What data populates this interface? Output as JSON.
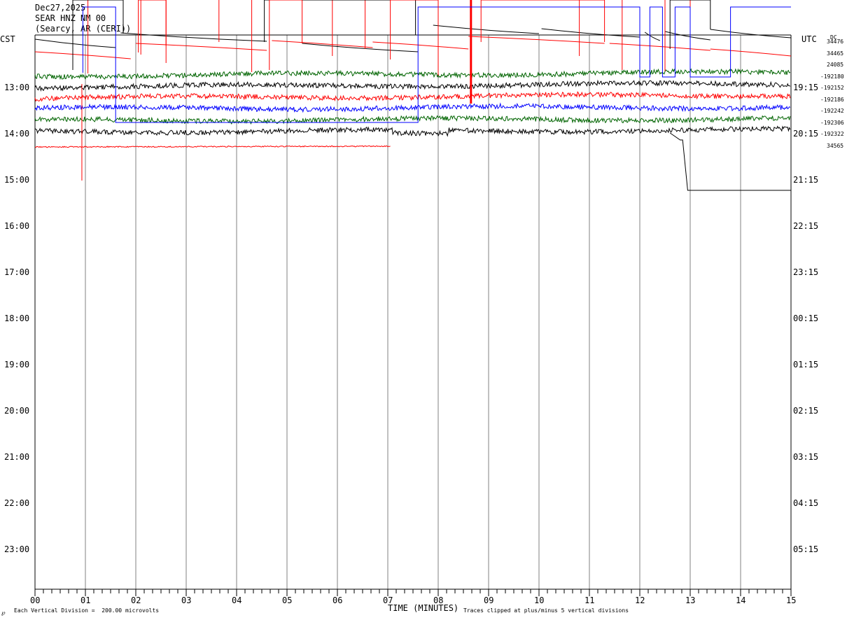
{
  "header": {
    "date": "Dec27,2025",
    "station": "SEAR HNZ NM 00",
    "location": "(Searcy, AR (CERI))"
  },
  "left_zone": "CST",
  "right_zone": "UTC",
  "dc_label": "DC",
  "footer": {
    "scale_note": "Each Vertical Division =  200.00 microvolts",
    "clip_note": "Traces clipped at plus/minus 5 vertical divisions",
    "corner_mark": "℘"
  },
  "chart_data": {
    "type": "line",
    "xlabel": "TIME (MINUTES)",
    "xlim": [
      0,
      15
    ],
    "x_ticks": [
      "00",
      "01",
      "02",
      "03",
      "04",
      "05",
      "06",
      "07",
      "08",
      "09",
      "10",
      "11",
      "12",
      "13",
      "14",
      "15"
    ],
    "left_time_labels": [
      "13:00",
      "14:00",
      "15:00",
      "16:00",
      "17:00",
      "18:00",
      "19:00",
      "20:00",
      "21:00",
      "22:00",
      "23:00"
    ],
    "right_time_labels": [
      "19:15",
      "20:15",
      "21:15",
      "22:15",
      "23:15",
      "00:15",
      "01:15",
      "02:15",
      "03:15",
      "04:15",
      "05:15"
    ],
    "dc_offsets": [
      "34476",
      "34465",
      "24085",
      "-192180",
      "-192152",
      "-192186",
      "-192242",
      "-192306",
      "-192322",
      "34565"
    ],
    "grid": true,
    "series": [
      {
        "color": "#000000",
        "kind": "gappy",
        "base_row": 0
      },
      {
        "color": "#ff0000",
        "kind": "gappy",
        "base_row": 1
      },
      {
        "color": "#0000ff",
        "kind": "square",
        "base_row": 2
      },
      {
        "color": "#006400",
        "kind": "noise",
        "base_row": 3
      },
      {
        "color": "#000000",
        "kind": "noise",
        "base_row": 4
      },
      {
        "color": "#ff0000",
        "kind": "noise",
        "base_row": 5
      },
      {
        "color": "#0000ff",
        "kind": "noise",
        "base_row": 6
      },
      {
        "color": "#006400",
        "kind": "noise",
        "base_row": 7
      },
      {
        "color": "#000000",
        "kind": "noise",
        "base_row": 8
      },
      {
        "color": "#ff0000",
        "kind": "partial",
        "base_row": 9
      }
    ]
  }
}
